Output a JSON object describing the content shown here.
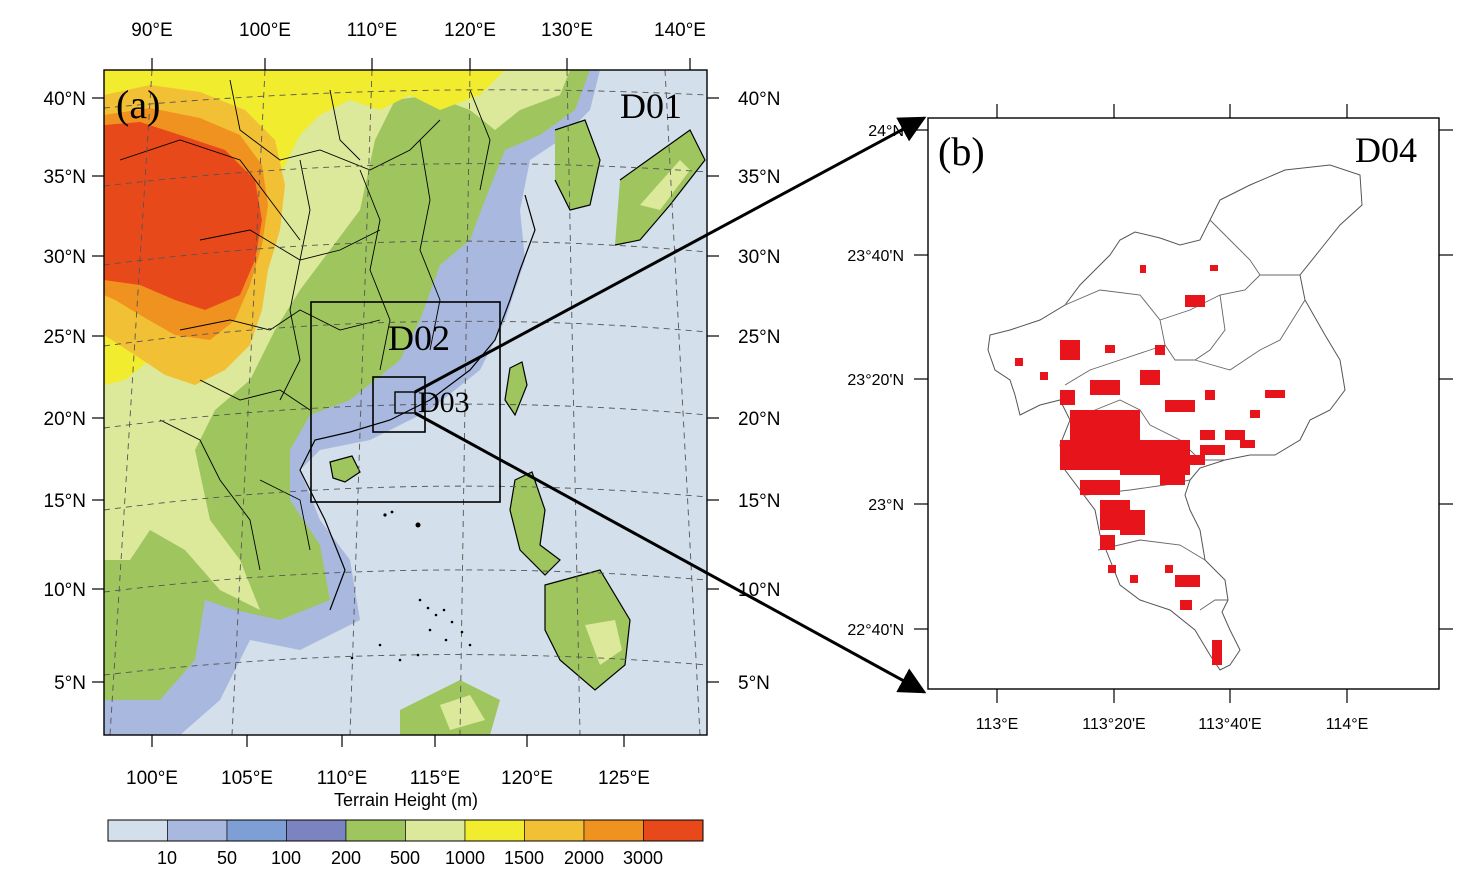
{
  "panel_a": {
    "panel_label": "(a)",
    "domain_labels": {
      "d01": "D01",
      "d02": "D02",
      "d03": "D03"
    },
    "top_lon_labels": [
      "90°E",
      "100°E",
      "110°E",
      "120°E",
      "130°E",
      "140°E"
    ],
    "bottom_lon_labels": [
      "100°E",
      "105°E",
      "110°E",
      "115°E",
      "120°E",
      "125°E"
    ],
    "left_lat_labels": [
      "40°N",
      "35°N",
      "30°N",
      "25°N",
      "20°N",
      "15°N",
      "10°N",
      "5°N"
    ],
    "right_lat_labels": [
      "40°N",
      "35°N",
      "30°N",
      "25°N",
      "20°N",
      "15°N",
      "10°N",
      "5°N"
    ],
    "colorbar": {
      "title": "Terrain Height (m)",
      "labels": [
        "10",
        "50",
        "100",
        "200",
        "500",
        "1000",
        "1500",
        "2000",
        "3000"
      ],
      "colors": [
        "#d3dfea",
        "#a9b8de",
        "#7d9fd6",
        "#7b84c0",
        "#9fc65e",
        "#dce99b",
        "#f1ec2e",
        "#f2c034",
        "#f0921f",
        "#e8491a"
      ]
    }
  },
  "panel_b": {
    "panel_label": "(b)",
    "domain_label": "D04",
    "left_lat_labels": [
      "24°N",
      "23°40'N",
      "23°20'N",
      "23°N",
      "22°40'N"
    ],
    "bottom_lon_labels": [
      "113°E",
      "113°20'E",
      "113°40'E",
      "114°E"
    ],
    "urban_color": "#e8141b"
  }
}
